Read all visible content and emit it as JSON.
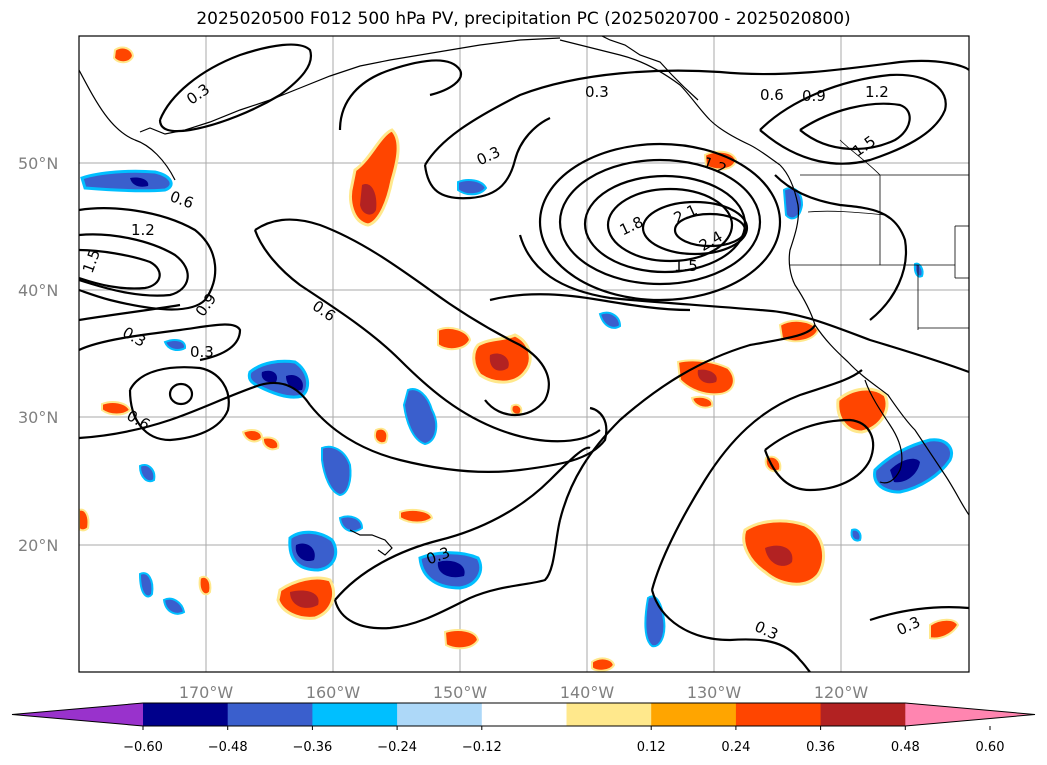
{
  "title": "2025020500 F012 500 hPa PV, precipitation PC (2025020700 - 2025020800)",
  "map": {
    "lat_labels": [
      "50°N",
      "40°N",
      "30°N",
      "20°N"
    ],
    "lon_labels": [
      "170°W",
      "160°W",
      "150°W",
      "140°W",
      "130°W",
      "120°W"
    ],
    "contour_labels": [
      "0.3",
      "0.3",
      "0.3",
      "0.6",
      "0.9",
      "1.2",
      "0.6",
      "1.2",
      "1.5",
      "1.5",
      "1.8",
      "2.1",
      "2.4",
      "1.5",
      "1.2",
      "0.9",
      "0.6",
      "0.3",
      "0.3",
      "0.6",
      "0.3",
      "0.3",
      "0.3"
    ],
    "colors": {
      "contour": "#000000",
      "grid": "#aaaaaa",
      "coast": "#000000"
    }
  },
  "colorbar": {
    "tick_labels": [
      "−0.60",
      "−0.48",
      "−0.36",
      "−0.24",
      "−0.12",
      "0.12",
      "0.24",
      "0.36",
      "0.48",
      "0.60"
    ],
    "colors": [
      "#9932cc",
      "#00008b",
      "#3a5fcd",
      "#00bfff",
      "#add8f8",
      "#ffffff",
      "#ffe88c",
      "#ffa500",
      "#ff4500",
      "#b22222",
      "#ff85b0"
    ]
  }
}
